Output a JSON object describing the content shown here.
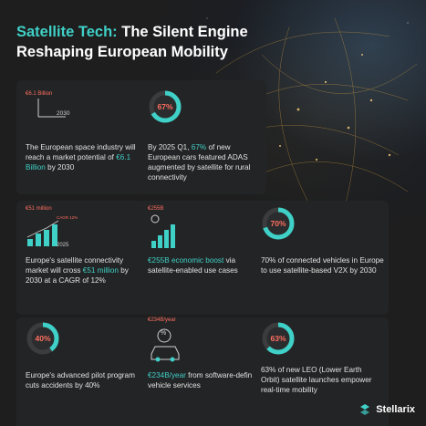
{
  "header": {
    "title_accent": "Satellite Tech:",
    "title_rest_line1": " The Silent Engine",
    "title_line2": "Reshaping European Mobility"
  },
  "cards": {
    "c1": {
      "tag": "€6.1 Billion",
      "year": "2030",
      "text_a": "The European space industry will reach a market potential of ",
      "text_highlight": "€6.1 Billion",
      "text_b": " by 2030"
    },
    "c2": {
      "percent_label": "67%",
      "percent_value": 67,
      "text_a": "By 2025 Q1, ",
      "text_highlight": "67%",
      "text_b": " of new European cars featured ADAS augmented by satellite for rural connectivity"
    },
    "c3": {
      "tag": "€51 million",
      "cagr_tag": "CAGR 12%",
      "year": "2025",
      "text_a": "Europe's satellite connectivity market will cross ",
      "text_highlight": "€51 million",
      "text_b": " by 2030 at a CAGR of 12%"
    },
    "c4": {
      "tag": "€255B",
      "text_highlight": "€255B economic boost",
      "text_b": " via satellite-enabled use cases"
    },
    "c5": {
      "percent_label": "70%",
      "percent_value": 70,
      "text": "70% of connected vehicles in Europe to use satellite-based V2X by 2030"
    },
    "c6": {
      "percent_label": "40%",
      "percent_value": 40,
      "text": "Europe's advanced pilot program cuts accidents by 40%"
    },
    "c7": {
      "tag": "€234B/year",
      "icon_symbol": "%",
      "text_highlight": "€234B/year",
      "text_b": " from software-defined vehicle services"
    },
    "c8": {
      "percent_label": "63%",
      "percent_value": 63,
      "text": "63% of new LEO (Lower Earth Orbit) satellite launches empower real-time mobility"
    }
  },
  "logo": {
    "name": "Stellarix"
  },
  "colors": {
    "accent": "#3fd0c7",
    "tag": "#ff6f61",
    "background": "#1e1e1e"
  }
}
